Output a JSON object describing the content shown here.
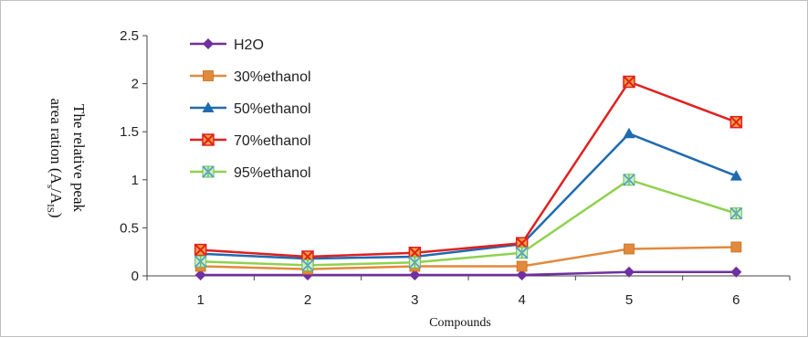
{
  "chart_data": {
    "type": "line",
    "title": "",
    "xlabel": "Compounds",
    "ylabel_line1": "The relative peak",
    "ylabel_line2": "area ration (A",
    "ylabel_sub1": "s",
    "ylabel_mid": "/A",
    "ylabel_sub2": "IS",
    "ylabel_end": ")",
    "x": [
      1,
      2,
      3,
      4,
      5,
      6
    ],
    "x_tick_labels": [
      "1",
      "2",
      "3",
      "4",
      "5",
      "6"
    ],
    "ylim": [
      0,
      2.5
    ],
    "y_ticks": [
      0,
      0.5,
      1,
      1.5,
      2,
      2.5
    ],
    "y_tick_labels": [
      "0",
      "0.5",
      "1",
      "1.5",
      "2",
      "2.5"
    ],
    "grid": false,
    "legend_position": "top-left",
    "series": [
      {
        "name": "H2O",
        "color": "#7030a0",
        "marker": "diamond",
        "values": [
          0.01,
          0.01,
          0.01,
          0.01,
          0.04,
          0.04
        ]
      },
      {
        "name": "30%ethanol",
        "color": "#e3893b",
        "marker": "square",
        "values": [
          0.1,
          0.07,
          0.1,
          0.1,
          0.28,
          0.3
        ]
      },
      {
        "name": "50%ethanol",
        "color": "#1f6bb0",
        "marker": "triangle",
        "values": [
          0.23,
          0.18,
          0.2,
          0.33,
          1.48,
          1.04
        ]
      },
      {
        "name": "70%ethanol",
        "color": "#e02020",
        "marker": "square-x",
        "values": [
          0.27,
          0.2,
          0.24,
          0.34,
          2.02,
          1.6
        ]
      },
      {
        "name": "95%ethanol",
        "color": "#8fd14f",
        "marker": "asterisk",
        "values": [
          0.15,
          0.11,
          0.14,
          0.24,
          1.0,
          0.65
        ]
      }
    ]
  }
}
